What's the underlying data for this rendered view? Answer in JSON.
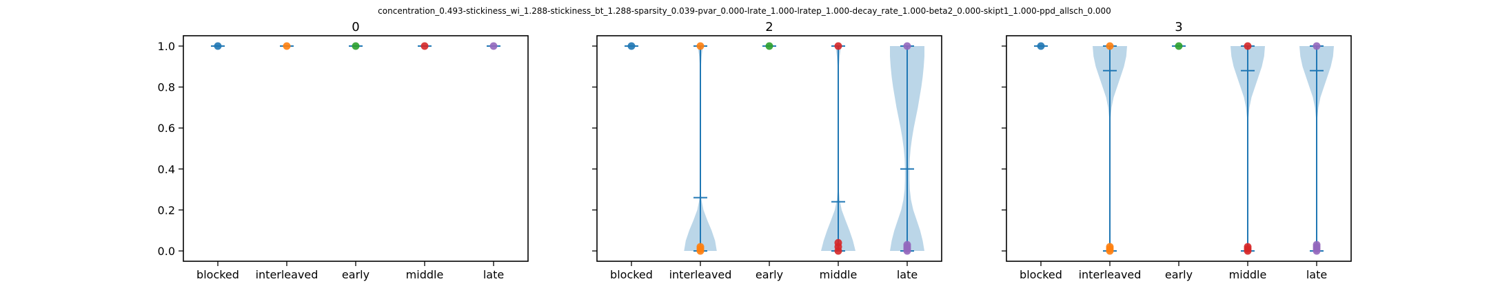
{
  "figure_title": "concentration_0.493-stickiness_wi_1.288-stickiness_bt_1.288-sparsity_0.039-pvar_0.000-lrate_1.000-lratep_1.000-decay_rate_1.000-beta2_0.000-skipt1_1.000-ppd_allsch_0.000",
  "colors": {
    "violin_fill": "#1f77b4",
    "violin_line": "#1f77b4",
    "dots": [
      "#1f77b4",
      "#ff7f0e",
      "#2ca02c",
      "#d62728",
      "#9467bd"
    ]
  },
  "chart_data": [
    {
      "type": "violin",
      "title": "0",
      "categories": [
        "blocked",
        "interleaved",
        "early",
        "middle",
        "late"
      ],
      "ylim": [
        0,
        1
      ],
      "yticks": [
        "0.0",
        "0.2",
        "0.4",
        "0.6",
        "0.8",
        "1.0"
      ],
      "grid": false,
      "series": [
        {
          "category": "blocked",
          "min": 1.0,
          "max": 1.0,
          "mean": 1.0,
          "points": [
            1.0
          ],
          "density": []
        },
        {
          "category": "interleaved",
          "min": 1.0,
          "max": 1.0,
          "mean": 1.0,
          "points": [
            1.0
          ],
          "density": []
        },
        {
          "category": "early",
          "min": 1.0,
          "max": 1.0,
          "mean": 1.0,
          "points": [
            1.0
          ],
          "density": []
        },
        {
          "category": "middle",
          "min": 1.0,
          "max": 1.0,
          "mean": 1.0,
          "points": [
            1.0
          ],
          "density": []
        },
        {
          "category": "late",
          "min": 1.0,
          "max": 1.0,
          "mean": 1.0,
          "points": [
            1.0
          ],
          "density": []
        }
      ]
    },
    {
      "type": "violin",
      "title": "2",
      "categories": [
        "blocked",
        "interleaved",
        "early",
        "middle",
        "late"
      ],
      "ylim": [
        0,
        1
      ],
      "yticks": [
        "0.0",
        "0.2",
        "0.4",
        "0.6",
        "0.8",
        "1.0"
      ],
      "grid": false,
      "series": [
        {
          "category": "blocked",
          "min": 1.0,
          "max": 1.0,
          "mean": 1.0,
          "points": [
            1.0
          ],
          "density": []
        },
        {
          "category": "interleaved",
          "min": 0.0,
          "max": 1.0,
          "mean": 0.26,
          "points": [
            0.0,
            0.01,
            0.02,
            1.0
          ],
          "density": [
            [
              0.0,
              0.95
            ],
            [
              0.05,
              0.85
            ],
            [
              0.1,
              0.65
            ],
            [
              0.15,
              0.4
            ],
            [
              0.2,
              0.18
            ],
            [
              0.25,
              0.06
            ],
            [
              0.3,
              0.02
            ],
            [
              0.4,
              0.005
            ],
            [
              0.5,
              0.003
            ],
            [
              0.6,
              0.003
            ],
            [
              0.7,
              0.005
            ],
            [
              0.8,
              0.01
            ],
            [
              0.9,
              0.03
            ],
            [
              0.95,
              0.07
            ],
            [
              0.98,
              0.12
            ],
            [
              1.0,
              0.14
            ]
          ]
        },
        {
          "category": "early",
          "min": 1.0,
          "max": 1.0,
          "mean": 1.0,
          "points": [
            1.0
          ],
          "density": []
        },
        {
          "category": "middle",
          "min": 0.0,
          "max": 1.0,
          "mean": 0.24,
          "points": [
            0.0,
            0.02,
            0.04,
            1.0
          ],
          "density": [
            [
              0.0,
              1.0
            ],
            [
              0.05,
              0.85
            ],
            [
              0.1,
              0.65
            ],
            [
              0.15,
              0.42
            ],
            [
              0.2,
              0.2
            ],
            [
              0.25,
              0.08
            ],
            [
              0.3,
              0.03
            ],
            [
              0.4,
              0.008
            ],
            [
              0.5,
              0.004
            ],
            [
              0.6,
              0.004
            ],
            [
              0.7,
              0.006
            ],
            [
              0.8,
              0.012
            ],
            [
              0.9,
              0.035
            ],
            [
              0.95,
              0.08
            ],
            [
              0.98,
              0.13
            ],
            [
              1.0,
              0.15
            ]
          ]
        },
        {
          "category": "late",
          "min": 0.0,
          "max": 1.0,
          "mean": 0.4,
          "points": [
            0.0,
            0.01,
            0.02,
            0.03,
            1.0
          ],
          "density": [
            [
              0.0,
              1.0
            ],
            [
              0.05,
              0.9
            ],
            [
              0.1,
              0.75
            ],
            [
              0.15,
              0.55
            ],
            [
              0.2,
              0.35
            ],
            [
              0.25,
              0.22
            ],
            [
              0.3,
              0.15
            ],
            [
              0.35,
              0.13
            ],
            [
              0.4,
              0.13
            ],
            [
              0.45,
              0.15
            ],
            [
              0.5,
              0.2
            ],
            [
              0.55,
              0.28
            ],
            [
              0.6,
              0.38
            ],
            [
              0.65,
              0.5
            ],
            [
              0.7,
              0.62
            ],
            [
              0.75,
              0.72
            ],
            [
              0.8,
              0.82
            ],
            [
              0.85,
              0.9
            ],
            [
              0.9,
              0.96
            ],
            [
              0.95,
              1.0
            ],
            [
              1.0,
              1.0
            ]
          ]
        }
      ]
    },
    {
      "type": "violin",
      "title": "3",
      "categories": [
        "blocked",
        "interleaved",
        "early",
        "middle",
        "late"
      ],
      "ylim": [
        0,
        1
      ],
      "yticks": [
        "0.0",
        "0.2",
        "0.4",
        "0.6",
        "0.8",
        "1.0"
      ],
      "grid": false,
      "series": [
        {
          "category": "blocked",
          "min": 1.0,
          "max": 1.0,
          "mean": 1.0,
          "points": [
            1.0
          ],
          "density": []
        },
        {
          "category": "interleaved",
          "min": 0.0,
          "max": 1.0,
          "mean": 0.88,
          "points": [
            0.0,
            0.01,
            0.02,
            1.0
          ],
          "density": [
            [
              0.0,
              0.05
            ],
            [
              0.02,
              0.04
            ],
            [
              0.05,
              0.02
            ],
            [
              0.1,
              0.01
            ],
            [
              0.2,
              0.005
            ],
            [
              0.3,
              0.004
            ],
            [
              0.4,
              0.004
            ],
            [
              0.5,
              0.006
            ],
            [
              0.6,
              0.02
            ],
            [
              0.65,
              0.04
            ],
            [
              0.7,
              0.1
            ],
            [
              0.75,
              0.22
            ],
            [
              0.8,
              0.42
            ],
            [
              0.85,
              0.62
            ],
            [
              0.9,
              0.82
            ],
            [
              0.95,
              0.95
            ],
            [
              1.0,
              1.0
            ]
          ]
        },
        {
          "category": "early",
          "min": 1.0,
          "max": 1.0,
          "mean": 1.0,
          "points": [
            1.0
          ],
          "density": []
        },
        {
          "category": "middle",
          "min": 0.0,
          "max": 1.0,
          "mean": 0.88,
          "points": [
            0.0,
            0.01,
            0.02,
            1.0
          ],
          "density": [
            [
              0.0,
              0.05
            ],
            [
              0.02,
              0.04
            ],
            [
              0.05,
              0.02
            ],
            [
              0.1,
              0.01
            ],
            [
              0.2,
              0.005
            ],
            [
              0.3,
              0.004
            ],
            [
              0.4,
              0.004
            ],
            [
              0.5,
              0.006
            ],
            [
              0.6,
              0.02
            ],
            [
              0.65,
              0.04
            ],
            [
              0.7,
              0.1
            ],
            [
              0.75,
              0.22
            ],
            [
              0.8,
              0.42
            ],
            [
              0.85,
              0.62
            ],
            [
              0.9,
              0.82
            ],
            [
              0.95,
              0.95
            ],
            [
              1.0,
              1.0
            ]
          ]
        },
        {
          "category": "late",
          "min": 0.0,
          "max": 1.0,
          "mean": 0.88,
          "points": [
            0.0,
            0.01,
            0.02,
            0.03,
            1.0
          ],
          "density": [
            [
              0.0,
              0.05
            ],
            [
              0.02,
              0.04
            ],
            [
              0.05,
              0.02
            ],
            [
              0.1,
              0.01
            ],
            [
              0.2,
              0.005
            ],
            [
              0.3,
              0.004
            ],
            [
              0.4,
              0.004
            ],
            [
              0.5,
              0.006
            ],
            [
              0.6,
              0.02
            ],
            [
              0.65,
              0.04
            ],
            [
              0.7,
              0.1
            ],
            [
              0.75,
              0.22
            ],
            [
              0.8,
              0.42
            ],
            [
              0.85,
              0.62
            ],
            [
              0.9,
              0.82
            ],
            [
              0.95,
              0.95
            ],
            [
              1.0,
              1.0
            ]
          ]
        }
      ]
    }
  ]
}
